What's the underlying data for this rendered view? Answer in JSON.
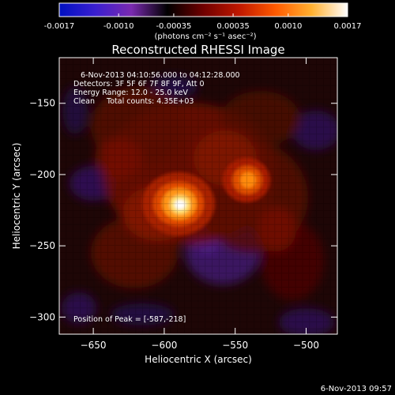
{
  "colorbar": {
    "ticks": [
      "-0.0017",
      "-0.0010",
      "-0.00035",
      "0.00035",
      "0.0010",
      "0.0017"
    ],
    "tick_values": [
      -0.0017,
      -0.001,
      -0.00035,
      0.00035,
      0.001,
      0.0017
    ],
    "range": [
      -0.0017,
      0.0017
    ],
    "units": "(photons cm⁻² s⁻¹ asec⁻²)",
    "colors": [
      "#0010c0",
      "#3a1fd0",
      "#7a2ab0",
      "#000000",
      "#700000",
      "#c01800",
      "#ff5a00",
      "#ffb030",
      "#ffffff"
    ]
  },
  "chart_data": {
    "type": "heatmap",
    "title": "Reconstructed RHESSI Image",
    "xlabel": "Heliocentric X (arcsec)",
    "ylabel": "Heliocentric Y (arcsec)",
    "xlim": [
      -674,
      -478
    ],
    "ylim": [
      -312,
      -118
    ],
    "xticks": [
      -650,
      -600,
      -550,
      -500
    ],
    "yticks": [
      -150,
      -200,
      -250,
      -300
    ],
    "annotations": [
      "6-Nov-2013 04:10:56.000 to 04:12:28.000",
      "Detectors: 3F 5F 6F 7F 8F 9F, Att 0",
      "Energy Range: 12.0 - 25.0 keV",
      "Clean     Total counts: 4.35E+03"
    ],
    "peak_label": "Position of Peak = [-587,-218]",
    "peak": [
      -587,
      -218
    ],
    "sources": [
      {
        "x": -587,
        "y": -218,
        "value": 0.0017
      },
      {
        "x": -543,
        "y": -203,
        "value": 0.0011
      }
    ]
  },
  "footer": {
    "timestamp": "6-Nov-2013 09:57"
  }
}
